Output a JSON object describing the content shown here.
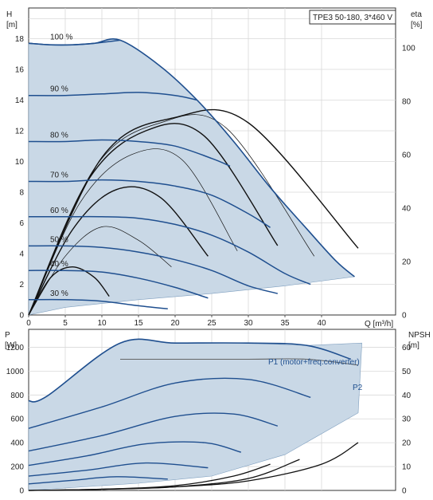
{
  "chart_data": [
    {
      "type": "line",
      "title": "TPE3 50-180, 3*460 V",
      "ylabel": "H",
      "yunit": "[m]",
      "xlabel": "Q [m³/h]",
      "ylim": [
        0,
        20
      ],
      "xlim": [
        0,
        50
      ],
      "x_ticks": [
        "0",
        "5",
        "10",
        "15",
        "20",
        "25",
        "30",
        "35",
        "40"
      ],
      "y_ticks": [
        "0",
        "2",
        "4",
        "6",
        "8",
        "10",
        "12",
        "14",
        "16",
        "18"
      ],
      "y2label": "eta",
      "y2unit": "[%]",
      "y2lim": [
        0,
        115
      ],
      "y2_ticks": [
        "0",
        "20",
        "40",
        "60",
        "80",
        "100"
      ],
      "grid": true,
      "series": [
        {
          "name": "100 %",
          "x": [
            0,
            3,
            6,
            9,
            12.5
          ],
          "values": [
            17.7,
            17.6,
            17.6,
            17.7,
            17.9
          ]
        },
        {
          "name": "90 %",
          "x": [
            0,
            5,
            10,
            15,
            20,
            23
          ],
          "values": [
            14.3,
            14.3,
            14.4,
            14.5,
            14.3,
            14.0
          ]
        },
        {
          "name": "80 %",
          "x": [
            0,
            5,
            10,
            15,
            20,
            25,
            27.5
          ],
          "values": [
            11.3,
            11.3,
            11.4,
            11.3,
            11.0,
            10.2,
            9.7
          ]
        },
        {
          "name": "70 %",
          "x": [
            0,
            5,
            10,
            15,
            20,
            25,
            30,
            33
          ],
          "values": [
            8.7,
            8.7,
            8.8,
            8.7,
            8.4,
            7.8,
            6.6,
            5.7
          ]
        },
        {
          "name": "60 %",
          "x": [
            0,
            5,
            10,
            15,
            20,
            25,
            30,
            35,
            38.5
          ],
          "values": [
            6.4,
            6.4,
            6.4,
            6.3,
            5.9,
            5.2,
            4.1,
            2.7,
            2.0
          ]
        },
        {
          "name": "50 %",
          "x": [
            0,
            5,
            10,
            15,
            20,
            25,
            30,
            34
          ],
          "values": [
            4.5,
            4.5,
            4.4,
            4.1,
            3.6,
            2.9,
            1.9,
            1.4
          ]
        },
        {
          "name": "40 %",
          "x": [
            0,
            5,
            10,
            15,
            20,
            24.5
          ],
          "values": [
            2.9,
            2.9,
            2.8,
            2.4,
            1.8,
            1.1
          ]
        },
        {
          "name": "30 %",
          "x": [
            0,
            5,
            10,
            15,
            19
          ],
          "values": [
            1.0,
            1.0,
            0.9,
            0.6,
            0.4
          ]
        }
      ],
      "eta_curves": [
        {
          "x": [
            0,
            3,
            6,
            9,
            11
          ],
          "values": [
            0,
            14,
            18,
            14,
            7
          ]
        },
        {
          "x": [
            0,
            5,
            10,
            15,
            19.5
          ],
          "values": [
            0,
            22,
            33,
            28,
            18
          ]
        },
        {
          "x": [
            0,
            6,
            12,
            18,
            24.5
          ],
          "values": [
            0,
            32,
            47,
            44,
            22
          ]
        },
        {
          "x": [
            0,
            7,
            14,
            21,
            28.5
          ],
          "values": [
            0,
            42,
            60,
            58,
            24
          ]
        },
        {
          "x": [
            0,
            8,
            16,
            24,
            34
          ],
          "values": [
            0,
            50,
            69,
            67,
            26
          ]
        },
        {
          "x": [
            0,
            9,
            18,
            27,
            39
          ],
          "values": [
            0,
            55,
            72,
            70,
            22
          ]
        },
        {
          "x": [
            0,
            10,
            20,
            30,
            45
          ],
          "values": [
            0,
            59,
            74,
            72,
            25
          ]
        }
      ]
    },
    {
      "type": "line",
      "ylabel": "P",
      "yunit": "[W]",
      "ylim": [
        0,
        1350
      ],
      "xlim": [
        0,
        50
      ],
      "y_ticks": [
        "0",
        "200",
        "400",
        "600",
        "800",
        "1000",
        "1200"
      ],
      "y2label": "NPSH",
      "y2unit": "[m]",
      "y2lim": [
        0,
        67.5
      ],
      "y2_ticks": [
        "0",
        "10",
        "20",
        "30",
        "40",
        "50",
        "60"
      ],
      "grid": true,
      "annotations": [
        "P1 (motor+freq.converter)",
        "P2"
      ],
      "series": [
        {
          "name": "P1 (motor+freq.converter)",
          "x": [
            0,
            2.5,
            12.5,
            20,
            30,
            38,
            44
          ],
          "values": [
            750,
            790,
            1235,
            1235,
            1235,
            1215,
            1100
          ]
        },
        {
          "name": "P2",
          "x": [
            12.5,
            20,
            30,
            38,
            45
          ],
          "values": [
            1100,
            1100,
            1100,
            1100,
            1050
          ]
        }
      ],
      "power_curves": [
        {
          "x": [
            0,
            10,
            20,
            30,
            38.5
          ],
          "values": [
            520,
            700,
            900,
            930,
            780
          ]
        },
        {
          "x": [
            0,
            10,
            20,
            28,
            34
          ],
          "values": [
            330,
            460,
            620,
            640,
            540
          ]
        },
        {
          "x": [
            0,
            8,
            16,
            24,
            29
          ],
          "values": [
            210,
            290,
            390,
            400,
            320
          ]
        },
        {
          "x": [
            0,
            8,
            16,
            24.5
          ],
          "values": [
            120,
            170,
            230,
            190
          ]
        },
        {
          "x": [
            0,
            6,
            12,
            19
          ],
          "values": [
            55,
            85,
            115,
            95
          ]
        }
      ],
      "npsh_curves": [
        {
          "x": [
            0,
            10,
            20,
            30,
            40,
            45
          ],
          "values": [
            0,
            0.5,
            1.5,
            4,
            11,
            20
          ]
        },
        {
          "x": [
            0,
            10,
            20,
            30,
            37
          ],
          "values": [
            0,
            0.5,
            1.5,
            5,
            13
          ]
        },
        {
          "x": [
            0,
            10,
            20,
            28,
            33
          ],
          "values": [
            0,
            0.5,
            2,
            6,
            11
          ]
        }
      ]
    }
  ]
}
